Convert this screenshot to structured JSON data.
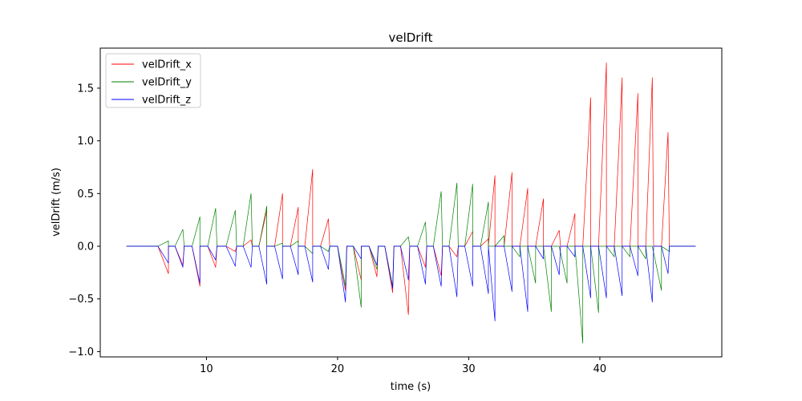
{
  "chart_data": {
    "type": "line",
    "title": "velDrift",
    "xlabel": "time (s)",
    "ylabel": "velDrift (m/s)",
    "xlim": [
      1.9,
      49.3
    ],
    "ylim": [
      -1.05,
      1.88
    ],
    "xticks": [
      10,
      20,
      30,
      40
    ],
    "yticks": [
      -1.0,
      -0.5,
      0.0,
      0.5,
      1.0,
      1.5
    ],
    "xtick_labels": [
      "10",
      "20",
      "30",
      "40"
    ],
    "ytick_labels": [
      "−1.0",
      "−0.5",
      "0.0",
      "0.5",
      "1.0",
      "1.5"
    ],
    "grid": false,
    "legend_position": "top-left",
    "series": [
      {
        "name": "velDrift_x",
        "color": "#ff0000",
        "points": [
          [
            3.9,
            0
          ],
          [
            6.3,
            0
          ],
          [
            7.1,
            -0.26
          ],
          [
            7.1,
            0
          ],
          [
            7.6,
            0
          ],
          [
            8.2,
            -0.18
          ],
          [
            8.3,
            0
          ],
          [
            8.9,
            0
          ],
          [
            9.5,
            -0.38
          ],
          [
            9.5,
            0
          ],
          [
            10.1,
            0
          ],
          [
            10.7,
            -0.2
          ],
          [
            10.8,
            0
          ],
          [
            11.5,
            0
          ],
          [
            12.2,
            -0.05
          ],
          [
            12.3,
            0
          ],
          [
            12.8,
            0
          ],
          [
            13.4,
            0.06
          ],
          [
            13.5,
            0
          ],
          [
            14.0,
            0
          ],
          [
            14.6,
            0.34
          ],
          [
            14.6,
            0
          ],
          [
            15.2,
            0
          ],
          [
            15.8,
            0.5
          ],
          [
            15.8,
            0
          ],
          [
            16.4,
            0
          ],
          [
            17.0,
            0.37
          ],
          [
            17.0,
            0
          ],
          [
            17.5,
            0
          ],
          [
            18.1,
            0.73
          ],
          [
            18.1,
            0
          ],
          [
            18.7,
            0
          ],
          [
            19.3,
            0.26
          ],
          [
            19.4,
            0
          ],
          [
            20.0,
            0
          ],
          [
            20.6,
            -0.42
          ],
          [
            20.7,
            0
          ],
          [
            21.2,
            0
          ],
          [
            21.8,
            -0.32
          ],
          [
            21.8,
            0
          ],
          [
            22.4,
            0
          ],
          [
            23.0,
            -0.29
          ],
          [
            23.1,
            0
          ],
          [
            23.6,
            0
          ],
          [
            24.2,
            -0.44
          ],
          [
            24.3,
            0
          ],
          [
            24.8,
            0
          ],
          [
            25.4,
            -0.65
          ],
          [
            25.5,
            0
          ],
          [
            26.1,
            0
          ],
          [
            26.7,
            -0.2
          ],
          [
            26.8,
            0
          ],
          [
            27.3,
            0
          ],
          [
            27.9,
            -0.28
          ],
          [
            28.0,
            0
          ],
          [
            28.5,
            0
          ],
          [
            29.1,
            -0.1
          ],
          [
            29.2,
            0
          ],
          [
            29.7,
            0
          ],
          [
            30.3,
            0.14
          ],
          [
            30.3,
            0
          ],
          [
            30.9,
            0
          ],
          [
            31.5,
            0.07
          ],
          [
            31.5,
            0
          ],
          [
            32.0,
            0.67
          ],
          [
            32.0,
            0
          ],
          [
            32.7,
            0
          ],
          [
            33.3,
            0.7
          ],
          [
            33.3,
            0
          ],
          [
            33.9,
            0
          ],
          [
            34.5,
            0.55
          ],
          [
            34.5,
            0
          ],
          [
            35.1,
            0
          ],
          [
            35.7,
            0.45
          ],
          [
            35.7,
            0
          ],
          [
            36.3,
            0
          ],
          [
            36.9,
            0.15
          ],
          [
            37.0,
            0
          ],
          [
            37.5,
            0
          ],
          [
            38.1,
            0.31
          ],
          [
            38.1,
            0
          ],
          [
            38.7,
            0
          ],
          [
            39.3,
            1.41
          ],
          [
            39.3,
            0
          ],
          [
            39.9,
            0
          ],
          [
            40.5,
            1.74
          ],
          [
            40.5,
            0
          ],
          [
            41.1,
            0
          ],
          [
            41.7,
            1.6
          ],
          [
            41.7,
            0
          ],
          [
            42.3,
            0
          ],
          [
            42.9,
            1.45
          ],
          [
            42.9,
            0
          ],
          [
            43.5,
            0
          ],
          [
            44.0,
            1.6
          ],
          [
            44.1,
            0
          ],
          [
            44.7,
            0
          ],
          [
            45.2,
            1.08
          ],
          [
            45.3,
            0
          ],
          [
            47.3,
            0
          ]
        ]
      },
      {
        "name": "velDrift_y",
        "color": "#008000",
        "points": [
          [
            3.9,
            0
          ],
          [
            6.3,
            0
          ],
          [
            7.1,
            0.05
          ],
          [
            7.1,
            0
          ],
          [
            7.6,
            0
          ],
          [
            8.2,
            0.16
          ],
          [
            8.3,
            0
          ],
          [
            8.9,
            0
          ],
          [
            9.5,
            0.28
          ],
          [
            9.5,
            0
          ],
          [
            10.1,
            0
          ],
          [
            10.7,
            0.36
          ],
          [
            10.8,
            0
          ],
          [
            11.5,
            0
          ],
          [
            12.2,
            0.34
          ],
          [
            12.3,
            0
          ],
          [
            12.8,
            0
          ],
          [
            13.4,
            0.5
          ],
          [
            13.5,
            0
          ],
          [
            14.0,
            0
          ],
          [
            14.6,
            0.38
          ],
          [
            14.6,
            0
          ],
          [
            15.2,
            0
          ],
          [
            15.8,
            0.03
          ],
          [
            15.8,
            0
          ],
          [
            16.4,
            0
          ],
          [
            17.0,
            0.05
          ],
          [
            17.0,
            0
          ],
          [
            17.5,
            0
          ],
          [
            18.1,
            -0.07
          ],
          [
            18.1,
            0
          ],
          [
            18.7,
            0
          ],
          [
            19.3,
            -0.05
          ],
          [
            19.4,
            0
          ],
          [
            20.0,
            0
          ],
          [
            20.6,
            -0.38
          ],
          [
            20.7,
            0
          ],
          [
            21.2,
            0
          ],
          [
            21.8,
            -0.58
          ],
          [
            21.8,
            0
          ],
          [
            22.4,
            0
          ],
          [
            23.0,
            -0.22
          ],
          [
            23.1,
            0
          ],
          [
            23.6,
            0
          ],
          [
            24.2,
            -0.38
          ],
          [
            24.3,
            0
          ],
          [
            24.8,
            0
          ],
          [
            25.4,
            0.09
          ],
          [
            25.5,
            0
          ],
          [
            26.1,
            0
          ],
          [
            26.7,
            0.23
          ],
          [
            26.8,
            0
          ],
          [
            27.3,
            0
          ],
          [
            27.9,
            0.52
          ],
          [
            28.0,
            0
          ],
          [
            28.5,
            0
          ],
          [
            29.1,
            0.6
          ],
          [
            29.2,
            0
          ],
          [
            29.7,
            0
          ],
          [
            30.3,
            0.59
          ],
          [
            30.3,
            0
          ],
          [
            30.9,
            0
          ],
          [
            31.5,
            0.42
          ],
          [
            31.5,
            0
          ],
          [
            32.0,
            0
          ],
          [
            32.7,
            0.1
          ],
          [
            32.7,
            0
          ],
          [
            33.3,
            0
          ],
          [
            33.9,
            -0.1
          ],
          [
            33.9,
            0
          ],
          [
            34.5,
            0
          ],
          [
            35.1,
            -0.35
          ],
          [
            35.1,
            0
          ],
          [
            35.7,
            0
          ],
          [
            36.3,
            -0.62
          ],
          [
            36.3,
            0
          ],
          [
            36.9,
            0
          ],
          [
            37.5,
            -0.35
          ],
          [
            37.5,
            0
          ],
          [
            38.1,
            0
          ],
          [
            38.7,
            -0.92
          ],
          [
            38.7,
            0
          ],
          [
            39.3,
            0
          ],
          [
            39.9,
            -0.63
          ],
          [
            39.9,
            0
          ],
          [
            40.5,
            0
          ],
          [
            41.1,
            -0.1
          ],
          [
            41.1,
            0
          ],
          [
            41.7,
            0
          ],
          [
            42.3,
            -0.1
          ],
          [
            42.3,
            0
          ],
          [
            42.9,
            0
          ],
          [
            43.5,
            -0.12
          ],
          [
            43.5,
            0
          ],
          [
            44.0,
            0
          ],
          [
            44.7,
            -0.42
          ],
          [
            44.7,
            0
          ],
          [
            45.3,
            -0.05
          ],
          [
            45.3,
            0
          ],
          [
            47.3,
            0
          ]
        ]
      },
      {
        "name": "velDrift_z",
        "color": "#0000ff",
        "points": [
          [
            3.9,
            0
          ],
          [
            6.3,
            0
          ],
          [
            7.1,
            -0.16
          ],
          [
            7.1,
            0
          ],
          [
            7.6,
            0
          ],
          [
            8.2,
            -0.2
          ],
          [
            8.3,
            0
          ],
          [
            8.9,
            0
          ],
          [
            9.5,
            -0.35
          ],
          [
            9.5,
            0
          ],
          [
            10.1,
            0
          ],
          [
            10.7,
            -0.13
          ],
          [
            10.8,
            0
          ],
          [
            11.5,
            0
          ],
          [
            12.2,
            -0.19
          ],
          [
            12.3,
            0
          ],
          [
            12.8,
            0
          ],
          [
            13.4,
            -0.2
          ],
          [
            13.5,
            0
          ],
          [
            14.0,
            0
          ],
          [
            14.6,
            -0.36
          ],
          [
            14.6,
            0
          ],
          [
            15.2,
            0
          ],
          [
            15.8,
            -0.31
          ],
          [
            15.8,
            0
          ],
          [
            16.4,
            0
          ],
          [
            17.0,
            -0.27
          ],
          [
            17.0,
            0
          ],
          [
            17.5,
            0
          ],
          [
            18.1,
            -0.34
          ],
          [
            18.1,
            0
          ],
          [
            18.7,
            0
          ],
          [
            19.3,
            -0.22
          ],
          [
            19.4,
            0
          ],
          [
            20.0,
            0
          ],
          [
            20.6,
            -0.53
          ],
          [
            20.7,
            0
          ],
          [
            21.2,
            0
          ],
          [
            21.8,
            -0.12
          ],
          [
            21.8,
            0
          ],
          [
            22.4,
            0
          ],
          [
            23.0,
            -0.18
          ],
          [
            23.1,
            0
          ],
          [
            23.6,
            0
          ],
          [
            24.2,
            -0.4
          ],
          [
            24.3,
            0
          ],
          [
            24.8,
            0
          ],
          [
            25.4,
            -0.32
          ],
          [
            25.5,
            0
          ],
          [
            26.1,
            0
          ],
          [
            26.7,
            -0.36
          ],
          [
            26.8,
            0
          ],
          [
            27.3,
            0
          ],
          [
            27.9,
            -0.38
          ],
          [
            28.0,
            0
          ],
          [
            28.5,
            0
          ],
          [
            29.1,
            -0.48
          ],
          [
            29.2,
            0
          ],
          [
            29.7,
            0
          ],
          [
            30.3,
            -0.38
          ],
          [
            30.3,
            0
          ],
          [
            30.9,
            0
          ],
          [
            31.5,
            -0.45
          ],
          [
            31.5,
            0
          ],
          [
            32.0,
            -0.71
          ],
          [
            32.0,
            0
          ],
          [
            32.7,
            0
          ],
          [
            33.3,
            -0.43
          ],
          [
            33.3,
            0
          ],
          [
            33.9,
            0
          ],
          [
            34.5,
            -0.62
          ],
          [
            34.5,
            0
          ],
          [
            35.1,
            0
          ],
          [
            35.7,
            -0.12
          ],
          [
            35.7,
            0
          ],
          [
            36.3,
            0
          ],
          [
            36.9,
            -0.27
          ],
          [
            37.0,
            0
          ],
          [
            37.5,
            0
          ],
          [
            38.1,
            -0.1
          ],
          [
            38.1,
            0
          ],
          [
            38.7,
            0
          ],
          [
            39.3,
            -0.49
          ],
          [
            39.3,
            0
          ],
          [
            39.9,
            0
          ],
          [
            40.5,
            -0.49
          ],
          [
            40.5,
            0
          ],
          [
            41.1,
            0
          ],
          [
            41.7,
            -0.47
          ],
          [
            41.7,
            0
          ],
          [
            42.3,
            0
          ],
          [
            42.9,
            -0.28
          ],
          [
            42.9,
            0
          ],
          [
            43.5,
            0
          ],
          [
            44.0,
            -0.53
          ],
          [
            44.1,
            0
          ],
          [
            44.7,
            0
          ],
          [
            45.2,
            -0.26
          ],
          [
            45.3,
            0
          ],
          [
            47.3,
            0
          ]
        ]
      }
    ]
  }
}
